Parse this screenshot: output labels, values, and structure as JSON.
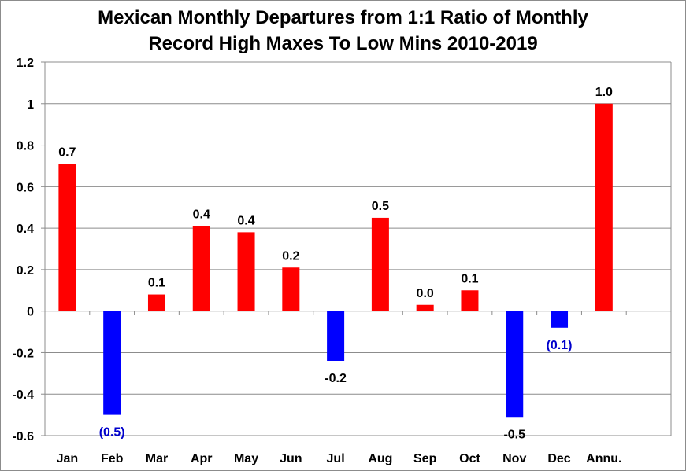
{
  "chart_data": {
    "type": "bar",
    "title_lines": [
      "Mexican Monthly Departures from 1:1 Ratio of Monthly",
      "Record High Maxes To Low Mins 2010-2019"
    ],
    "xlabel": "",
    "ylabel": "",
    "categories": [
      "Jan",
      "Feb",
      "Mar",
      "Apr",
      "May",
      "Jun",
      "Jul",
      "Aug",
      "Sep",
      "Oct",
      "Nov",
      "Dec",
      "Annu."
    ],
    "values": [
      0.71,
      -0.5,
      0.08,
      0.41,
      0.38,
      0.21,
      -0.24,
      0.45,
      0.03,
      0.1,
      -0.51,
      -0.08,
      1.0
    ],
    "data_labels": [
      "0.7",
      "(0.5)",
      "0.1",
      "0.4",
      "0.4",
      "0.2",
      "-0.2",
      "0.5",
      "0.0",
      "0.1",
      "-0.5",
      "(0.1)",
      "1.0"
    ],
    "y_tick_labels": [
      "1.2",
      "1",
      "0.8",
      "0.6",
      "0.4",
      "0.2",
      "0",
      "-0.2",
      "-0.4",
      "-0.6"
    ],
    "y_ticks": [
      1.2,
      1.0,
      0.8,
      0.6,
      0.4,
      0.2,
      0,
      -0.2,
      -0.4,
      -0.6
    ],
    "ylim": [
      -0.6,
      1.2
    ],
    "grid": true,
    "legend": "none",
    "colors": {
      "positive": "#ff0000",
      "negative": "#0000ff",
      "label_blue": "#0000cc",
      "grid": "#8c8c8c",
      "axis": "#8c8c8c",
      "text": "#000000"
    }
  }
}
